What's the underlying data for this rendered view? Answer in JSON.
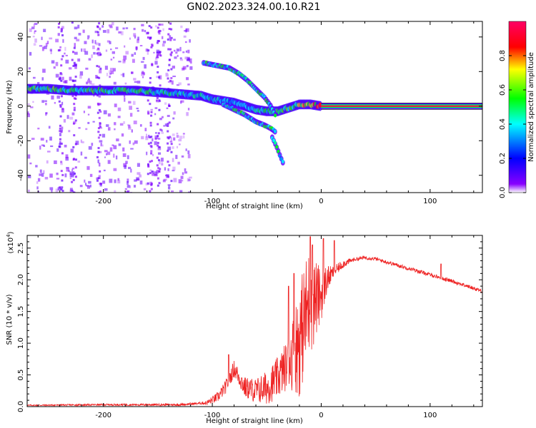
{
  "title": "GN02.2023.324.00.10.R21",
  "chart_data": [
    {
      "type": "heatmap",
      "xlabel": "Height of straight line (km)",
      "ylabel": "Frequency (Hz)",
      "xlim": [
        -270,
        148
      ],
      "ylim": [
        -50,
        49
      ],
      "xticks": [
        -200,
        -100,
        0,
        100
      ],
      "yticks": [
        -40,
        -20,
        0,
        20,
        40
      ],
      "xtick_labels": [
        "-200",
        "-100",
        "0",
        "100"
      ],
      "ytick_labels": [
        "-40",
        "-20",
        "0",
        "20",
        "40"
      ],
      "colorbar": {
        "label": "Normalized spectral amplitude",
        "range": [
          0,
          1
        ],
        "ticks": [
          0.0,
          0.2,
          0.4,
          0.6,
          0.8
        ],
        "tick_labels": [
          "0.0",
          "0.2",
          "0.4",
          "0.6",
          "0.8"
        ],
        "colors": [
          "#ffffff",
          "#8800ff",
          "#0000ff",
          "#00ffff",
          "#00ff00",
          "#ffff00",
          "#ff0000",
          "#ff0066"
        ]
      },
      "main_track": {
        "x": [
          -270,
          -250,
          -230,
          -210,
          -190,
          -170,
          -150,
          -130,
          -110,
          -100,
          -90,
          -80,
          -70,
          -60,
          -50,
          -40,
          -30,
          -20,
          -10,
          0,
          148
        ],
        "y": [
          10,
          10,
          9,
          9,
          9,
          9,
          8,
          7,
          6,
          4,
          3,
          2,
          0,
          -2,
          -3,
          -3,
          -1,
          1,
          1,
          0,
          0
        ],
        "amplitude": [
          0.6,
          0.6,
          0.55,
          0.55,
          0.55,
          0.55,
          0.5,
          0.5,
          0.45,
          0.45,
          0.45,
          0.4,
          0.4,
          0.45,
          0.5,
          0.55,
          0.6,
          0.7,
          0.8,
          0.95,
          1.0
        ]
      },
      "secondary_tracks": [
        {
          "x": [
            -108,
            -100,
            -92,
            -84,
            -76,
            -68,
            -60,
            -52,
            -46,
            -42
          ],
          "y": [
            25,
            24,
            23,
            22,
            19,
            15,
            10,
            5,
            0,
            -5
          ]
        },
        {
          "x": [
            -90,
            -80,
            -70,
            -60,
            -52,
            -46,
            -42
          ],
          "y": [
            1,
            -2,
            -5,
            -9,
            -11,
            -13,
            -15
          ]
        },
        {
          "x": [
            -45,
            -40,
            -35
          ],
          "y": [
            -18,
            -25,
            -33
          ]
        }
      ]
    },
    {
      "type": "line",
      "xlabel": "Height of straight line (km)",
      "ylabel": "SNR (10 * v/v)",
      "multiplier_label": "(x10",
      "multiplier_exp": "4",
      "multiplier_close": ")",
      "xlim": [
        -270,
        148
      ],
      "ylim": [
        0,
        2.7
      ],
      "xticks": [
        -200,
        -100,
        0,
        100
      ],
      "yticks": [
        0.0,
        0.5,
        1.0,
        1.5,
        2.0,
        2.5
      ],
      "xtick_labels": [
        "-200",
        "-100",
        "0",
        "100"
      ],
      "ytick_labels": [
        "0.0",
        "0.5",
        "1.0",
        "1.5",
        "2.0",
        "2.5"
      ],
      "color": "#ee2222",
      "envelope": {
        "x": [
          -270,
          -200,
          -130,
          -105,
          -95,
          -88,
          -80,
          -75,
          -70,
          -60,
          -50,
          -40,
          -30,
          -20,
          -15,
          -10,
          -5,
          0,
          5,
          10,
          20,
          30,
          40,
          50,
          60,
          80,
          100,
          120,
          148
        ],
        "y": [
          0.02,
          0.03,
          0.03,
          0.06,
          0.15,
          0.3,
          0.6,
          0.45,
          0.3,
          0.25,
          0.3,
          0.45,
          0.7,
          1.05,
          1.4,
          1.7,
          1.7,
          1.75,
          2.0,
          2.1,
          2.25,
          2.32,
          2.35,
          2.33,
          2.28,
          2.18,
          2.08,
          1.98,
          1.82
        ]
      },
      "noise_amplitude": {
        "x": [
          -270,
          -110,
          -90,
          -60,
          -30,
          -20,
          -10,
          0,
          10,
          30,
          148
        ],
        "y": [
          0.01,
          0.02,
          0.1,
          0.2,
          0.4,
          0.9,
          0.9,
          0.4,
          0.1,
          0.03,
          0.03
        ]
      },
      "peaks": [
        {
          "x": -85,
          "y": 0.82
        },
        {
          "x": -30,
          "y": 1.9
        },
        {
          "x": -25,
          "y": 2.1
        },
        {
          "x": -10,
          "y": 2.68
        },
        {
          "x": -8,
          "y": 2.55
        },
        {
          "x": 2,
          "y": 2.65
        },
        {
          "x": 12,
          "y": 2.62
        },
        {
          "x": 110,
          "y": 2.25
        }
      ]
    }
  ]
}
